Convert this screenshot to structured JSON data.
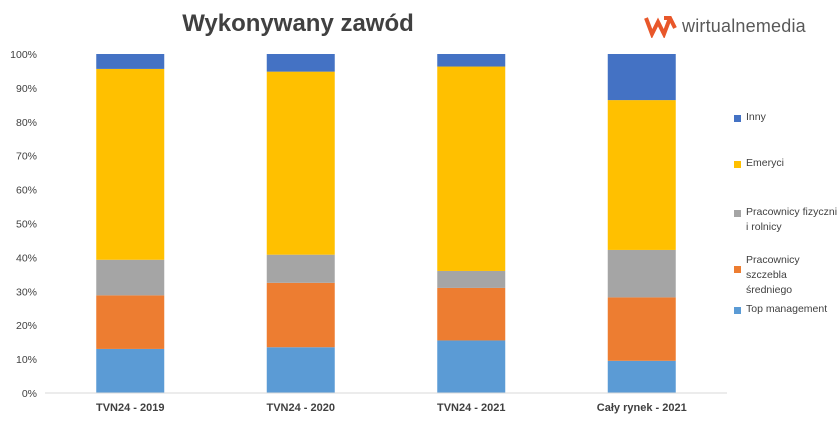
{
  "title": "Wykonywany zawód",
  "logo": {
    "text": "wirtualnemedia",
    "icon": "wm-logo-icon",
    "color": "#e8572a"
  },
  "chart_data": {
    "type": "bar",
    "stacked": true,
    "percent": true,
    "categories": [
      "TVN24 - 2019",
      "TVN24 - 2020",
      "TVN24 - 2021",
      "Cały rynek - 2021"
    ],
    "series": [
      {
        "name": "Top management",
        "color": "#5b9bd5",
        "values": [
          13,
          13.5,
          15.5,
          9.5
        ]
      },
      {
        "name": "Pracownicy szczebla średniego",
        "color": "#ed7d31",
        "values": [
          15.8,
          19,
          15.5,
          18.7
        ]
      },
      {
        "name": "Pracownicy fizyczni i rolnicy",
        "color": "#a5a5a5",
        "values": [
          10.5,
          8.3,
          5,
          14
        ]
      },
      {
        "name": "Emeryci",
        "color": "#ffc000",
        "values": [
          56.3,
          54,
          60.3,
          44.2
        ]
      },
      {
        "name": "Inny",
        "color": "#4472c4",
        "values": [
          4.4,
          5.2,
          3.7,
          13.6
        ]
      }
    ],
    "yticks": [
      "0%",
      "10%",
      "20%",
      "30%",
      "40%",
      "50%",
      "60%",
      "70%",
      "80%",
      "90%",
      "100%"
    ],
    "ylim": [
      0,
      100
    ],
    "grid": false,
    "legend": "right"
  }
}
